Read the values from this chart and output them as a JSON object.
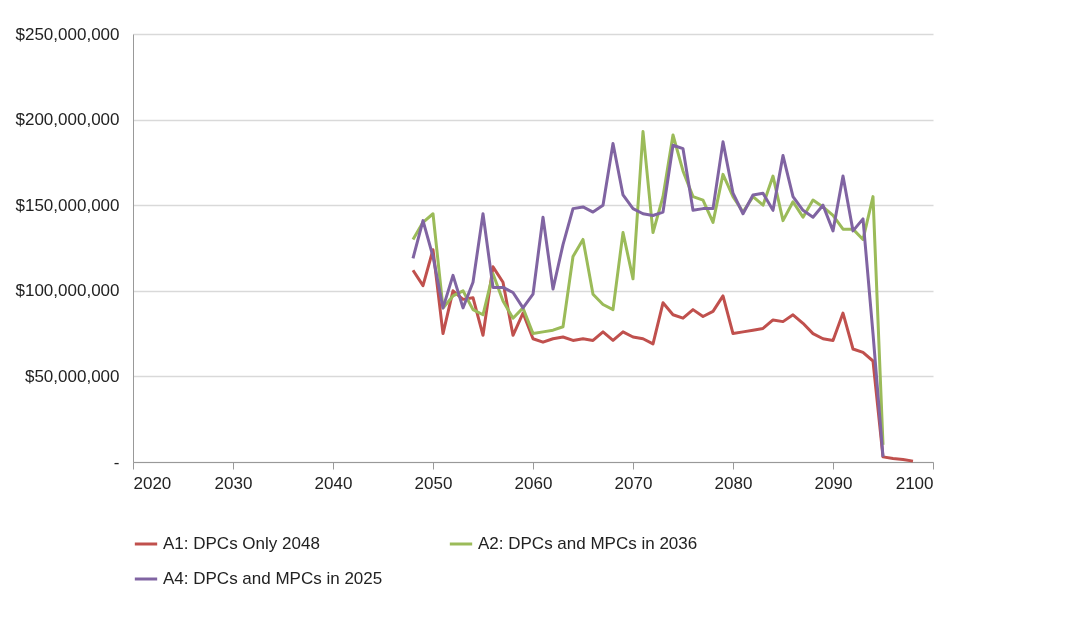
{
  "chart_data": {
    "type": "line",
    "x": [
      2048,
      2049,
      2050,
      2051,
      2052,
      2053,
      2054,
      2055,
      2056,
      2057,
      2058,
      2059,
      2060,
      2061,
      2062,
      2063,
      2064,
      2065,
      2066,
      2067,
      2068,
      2069,
      2070,
      2071,
      2072,
      2073,
      2074,
      2075,
      2076,
      2077,
      2078,
      2079,
      2080,
      2081,
      2082,
      2083,
      2084,
      2085,
      2086,
      2087,
      2088,
      2089,
      2090,
      2091,
      2092,
      2093,
      2094,
      2095,
      2096,
      2097,
      2098
    ],
    "series": [
      {
        "name": "A1: DPCs Only 2048",
        "color": "#c0504d",
        "values": [
          112000000,
          103000000,
          124000000,
          75000000,
          100000000,
          95000000,
          96000000,
          74000000,
          114000000,
          105000000,
          74000000,
          87000000,
          72000000,
          70000000,
          72000000,
          73000000,
          71000000,
          72000000,
          71000000,
          76000000,
          71000000,
          76000000,
          73000000,
          72000000,
          69000000,
          93000000,
          86000000,
          84000000,
          89000000,
          85000000,
          88000000,
          97000000,
          75000000,
          76000000,
          77000000,
          78000000,
          83000000,
          82000000,
          86000000,
          81000000,
          75000000,
          72000000,
          71000000,
          87000000,
          66000000,
          64000000,
          59000000,
          3000000,
          2000000,
          1500000,
          500000
        ]
      },
      {
        "name": "A2: DPCs and MPCs in 2036",
        "color": "#9bbb59",
        "values": [
          130000000,
          140000000,
          145000000,
          90000000,
          97000000,
          100000000,
          89000000,
          86000000,
          110000000,
          94000000,
          84000000,
          90000000,
          75000000,
          76000000,
          77000000,
          79000000,
          120000000,
          130000000,
          98000000,
          92000000,
          89000000,
          134000000,
          107000000,
          193000000,
          134000000,
          155000000,
          191000000,
          170000000,
          155000000,
          153000000,
          140000000,
          168000000,
          155000000,
          146000000,
          155000000,
          150000000,
          167000000,
          141000000,
          152000000,
          143000000,
          153000000,
          149000000,
          144000000,
          136000000,
          136000000,
          130000000,
          155000000,
          10000000,
          null,
          null,
          null
        ]
      },
      {
        "name": "A4: DPCs and MPCs in 2025",
        "color": "#8064a2",
        "values": [
          119000000,
          141000000,
          120000000,
          90000000,
          109000000,
          90000000,
          105000000,
          145000000,
          102000000,
          102000000,
          99000000,
          90000000,
          98000000,
          143000000,
          101000000,
          127000000,
          148000000,
          149000000,
          146000000,
          150000000,
          186000000,
          156000000,
          148000000,
          145000000,
          144000000,
          146000000,
          185000000,
          183000000,
          147000000,
          148000000,
          148000000,
          187000000,
          157000000,
          145000000,
          156000000,
          157000000,
          147000000,
          179000000,
          155000000,
          147000000,
          143000000,
          150000000,
          135000000,
          167000000,
          135000000,
          142000000,
          75000000,
          3000000,
          null,
          null,
          null
        ]
      }
    ],
    "xlim": [
      2020,
      2100
    ],
    "xticks": [
      2020,
      2030,
      2040,
      2050,
      2060,
      2070,
      2080,
      2090,
      2100
    ],
    "ylim": [
      0,
      250000000
    ],
    "yticks": [
      {
        "value": 0,
        "label": "-"
      },
      {
        "value": 50000000,
        "label": "$50,000,000"
      },
      {
        "value": 100000000,
        "label": "$100,000,000"
      },
      {
        "value": 150000000,
        "label": "$150,000,000"
      },
      {
        "value": 200000000,
        "label": "$200,000,000"
      },
      {
        "value": 250000000,
        "label": "$250,000,000"
      }
    ],
    "grid": "y",
    "legend": "bottom",
    "line_style": "solid",
    "marker": "none"
  }
}
